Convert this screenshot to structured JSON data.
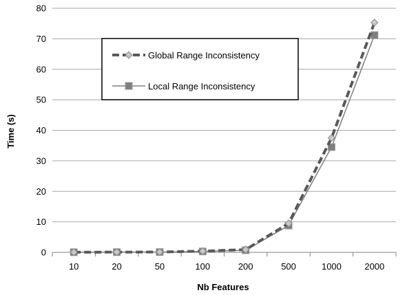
{
  "chart_data": {
    "type": "line",
    "categories": [
      "10",
      "20",
      "50",
      "100",
      "200",
      "500",
      "1000",
      "2000"
    ],
    "series": [
      {
        "name": "Global Range Inconsistency",
        "values": [
          0.05,
          0.08,
          0.12,
          0.4,
          0.9,
          9.5,
          37.5,
          75.3
        ],
        "color": "#595959",
        "style": "dashed",
        "marker": "diamond"
      },
      {
        "name": "Local Range Inconsistency",
        "values": [
          0.05,
          0.08,
          0.1,
          0.3,
          0.7,
          8.8,
          34.5,
          71.2
        ],
        "color": "#808080",
        "style": "solid",
        "marker": "square"
      }
    ],
    "xlabel": "Nb Features",
    "ylabel": "Time (s)",
    "ylim": [
      0,
      80
    ],
    "yticks": [
      "0",
      "10",
      "20",
      "30",
      "40",
      "50",
      "60",
      "70",
      "80"
    ],
    "grid": true,
    "legend_position": "top-left inside plot"
  }
}
